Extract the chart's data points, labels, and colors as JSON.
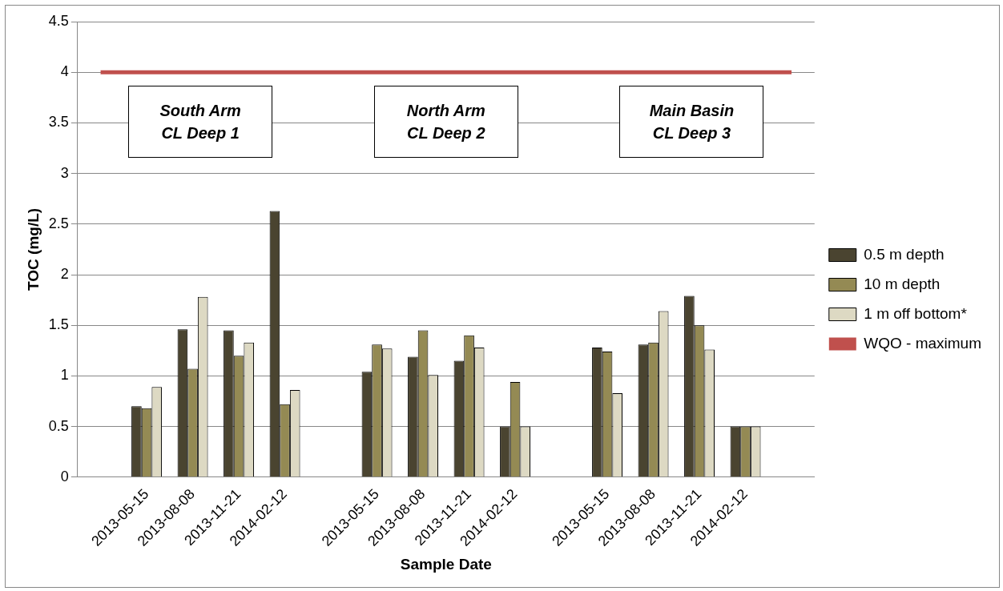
{
  "chart_data": {
    "type": "bar",
    "xlabel": "Sample Date",
    "ylabel": "TOC (mg/L)",
    "categories": [
      null,
      "2013-05-15",
      "2013-08-08",
      "2013-11-21",
      "2014-02-12",
      null,
      "2013-05-15",
      "2013-08-08",
      "2013-11-21",
      "2014-02-12",
      null,
      "2013-05-15",
      "2013-08-08",
      "2013-11-21",
      "2014-02-12",
      null
    ],
    "series": [
      {
        "name": "0.5 m depth",
        "color": "#4a4430",
        "values": [
          null,
          0.7,
          1.46,
          1.45,
          2.63,
          null,
          1.04,
          1.19,
          1.15,
          0.5,
          null,
          1.28,
          1.31,
          1.79,
          0.5,
          null
        ]
      },
      {
        "name": "10 m depth",
        "color": "#948a54",
        "values": [
          null,
          0.68,
          1.07,
          1.2,
          0.72,
          null,
          1.31,
          1.45,
          1.4,
          0.94,
          null,
          1.24,
          1.33,
          1.5,
          0.5,
          null
        ]
      },
      {
        "name": "1 m off bottom*",
        "color": "#ddd9c3",
        "values": [
          null,
          0.89,
          1.78,
          1.33,
          0.86,
          null,
          1.27,
          1.01,
          1.28,
          0.5,
          null,
          0.83,
          1.64,
          1.26,
          0.5,
          null
        ]
      },
      {
        "name": "WQO - maximum",
        "type": "line",
        "color": "#c0504d",
        "values": [
          4,
          4,
          4,
          4,
          4,
          4,
          4,
          4,
          4,
          4,
          4,
          4,
          4,
          4,
          4,
          4
        ]
      }
    ],
    "annotations": [
      "South Arm\nCL Deep 1",
      "North Arm\nCL Deep 2",
      "Main Basin\nCL Deep 3"
    ],
    "ylim": [
      0,
      4.5
    ],
    "yticks": [
      0,
      0.5,
      1,
      1.5,
      2,
      2.5,
      3,
      3.5,
      4,
      4.5
    ],
    "grid": "y",
    "legend": "right",
    "marker": "none"
  }
}
